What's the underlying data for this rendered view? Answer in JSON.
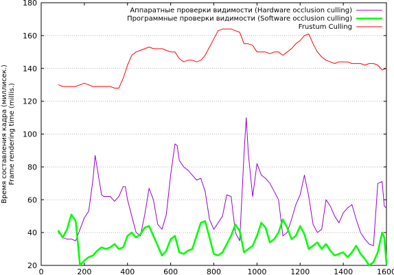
{
  "chart_data": {
    "type": "line",
    "xlabel": "",
    "ylabel_lines": [
      "Время составления кадра (миллисек.)",
      "Frame rendering time (millis.)"
    ],
    "xlim": [
      0,
      1600
    ],
    "ylim": [
      20,
      180
    ],
    "xticks": [
      0,
      200,
      400,
      600,
      800,
      1000,
      1200,
      1400,
      1600
    ],
    "yticks": [
      20,
      40,
      60,
      80,
      100,
      120,
      140,
      160,
      180
    ],
    "grid": true,
    "legend_position": "top-right",
    "series": [
      {
        "name": "Аппаратные проверки видимости (Hardware occlusion culling)",
        "color": "#9400d3",
        "width": 1,
        "x": [
          80,
          100,
          120,
          140,
          160,
          180,
          200,
          220,
          240,
          250,
          260,
          280,
          290,
          300,
          320,
          340,
          360,
          380,
          390,
          400,
          420,
          440,
          460,
          480,
          500,
          520,
          540,
          560,
          580,
          600,
          620,
          630,
          640,
          660,
          680,
          700,
          720,
          740,
          760,
          780,
          800,
          820,
          840,
          860,
          880,
          900,
          920,
          940,
          950,
          960,
          980,
          1000,
          1020,
          1040,
          1060,
          1080,
          1100,
          1120,
          1140,
          1160,
          1180,
          1200,
          1220,
          1240,
          1260,
          1280,
          1300,
          1320,
          1340,
          1360,
          1380,
          1400,
          1420,
          1440,
          1460,
          1480,
          1500,
          1520,
          1540,
          1560,
          1580,
          1590,
          1600
        ],
        "values": [
          40,
          37,
          36,
          36,
          35,
          42,
          49,
          53,
          72,
          87,
          79,
          63,
          62,
          62,
          62,
          59,
          62,
          68,
          68,
          60,
          50,
          40,
          38,
          51,
          67,
          60,
          45,
          42,
          51,
          75,
          94,
          93,
          84,
          80,
          78,
          75,
          72,
          73,
          65,
          48,
          42,
          46,
          50,
          63,
          62,
          40,
          35,
          88,
          110,
          88,
          62,
          82,
          75,
          73,
          70,
          65,
          60,
          38,
          40,
          48,
          57,
          63,
          75,
          62,
          45,
          40,
          42,
          60,
          56,
          50,
          46,
          52,
          55,
          57,
          48,
          40,
          36,
          33,
          32,
          70,
          71,
          56,
          55
        ]
      },
      {
        "name": "Программные проверки видимости (Software occlusion culling)",
        "color": "#00ff00",
        "width": 2.6,
        "x": [
          80,
          100,
          120,
          140,
          160,
          180,
          200,
          220,
          240,
          260,
          280,
          300,
          320,
          340,
          360,
          380,
          400,
          420,
          440,
          460,
          480,
          500,
          520,
          540,
          560,
          580,
          600,
          620,
          640,
          660,
          680,
          700,
          720,
          740,
          760,
          780,
          800,
          820,
          840,
          860,
          880,
          900,
          920,
          940,
          960,
          980,
          1000,
          1020,
          1040,
          1060,
          1080,
          1100,
          1120,
          1140,
          1160,
          1180,
          1200,
          1220,
          1240,
          1260,
          1280,
          1300,
          1320,
          1340,
          1360,
          1380,
          1400,
          1420,
          1440,
          1460,
          1480,
          1500,
          1520,
          1540,
          1560,
          1580,
          1590,
          1600
        ],
        "values": [
          41,
          37,
          42,
          51,
          47,
          20,
          23,
          25,
          26,
          29,
          31,
          30,
          31,
          33,
          30,
          31,
          38,
          40,
          37,
          39,
          43,
          44,
          38,
          32,
          26,
          29,
          36,
          38,
          28,
          27,
          29,
          30,
          38,
          46,
          47,
          37,
          27,
          26,
          28,
          33,
          38,
          45,
          41,
          28,
          30,
          32,
          38,
          46,
          43,
          34,
          36,
          40,
          48,
          43,
          36,
          38,
          44,
          39,
          30,
          32,
          34,
          30,
          33,
          29,
          26,
          27,
          28,
          25,
          28,
          32,
          27,
          24,
          20,
          22,
          28,
          40,
          37,
          21
        ]
      },
      {
        "name": "Frustum Culling",
        "color": "#ff0000",
        "width": 1,
        "x": [
          80,
          100,
          120,
          140,
          160,
          180,
          200,
          220,
          240,
          260,
          280,
          300,
          320,
          340,
          360,
          380,
          400,
          420,
          440,
          460,
          480,
          500,
          520,
          540,
          560,
          580,
          600,
          620,
          640,
          660,
          680,
          700,
          720,
          740,
          760,
          780,
          800,
          820,
          840,
          860,
          880,
          900,
          920,
          940,
          960,
          980,
          1000,
          1020,
          1040,
          1060,
          1080,
          1100,
          1120,
          1140,
          1160,
          1180,
          1200,
          1220,
          1240,
          1260,
          1280,
          1300,
          1320,
          1340,
          1360,
          1380,
          1400,
          1420,
          1440,
          1460,
          1480,
          1500,
          1520,
          1540,
          1560,
          1580,
          1600
        ],
        "values": [
          130,
          129,
          129,
          129,
          129,
          130,
          131,
          130,
          129,
          129,
          129,
          129,
          129,
          128,
          128,
          134,
          142,
          148,
          150,
          151,
          152,
          153,
          152,
          152,
          152,
          151,
          150,
          150,
          146,
          144,
          145,
          145,
          144,
          145,
          148,
          153,
          158,
          163,
          164,
          164,
          164,
          163,
          162,
          155,
          155,
          154,
          150,
          150,
          150,
          149,
          150,
          150,
          148,
          150,
          152,
          155,
          157,
          160,
          161,
          155,
          150,
          147,
          145,
          144,
          143,
          144,
          144,
          144,
          143,
          143,
          143,
          142,
          143,
          143,
          142,
          139,
          140
        ]
      }
    ]
  }
}
